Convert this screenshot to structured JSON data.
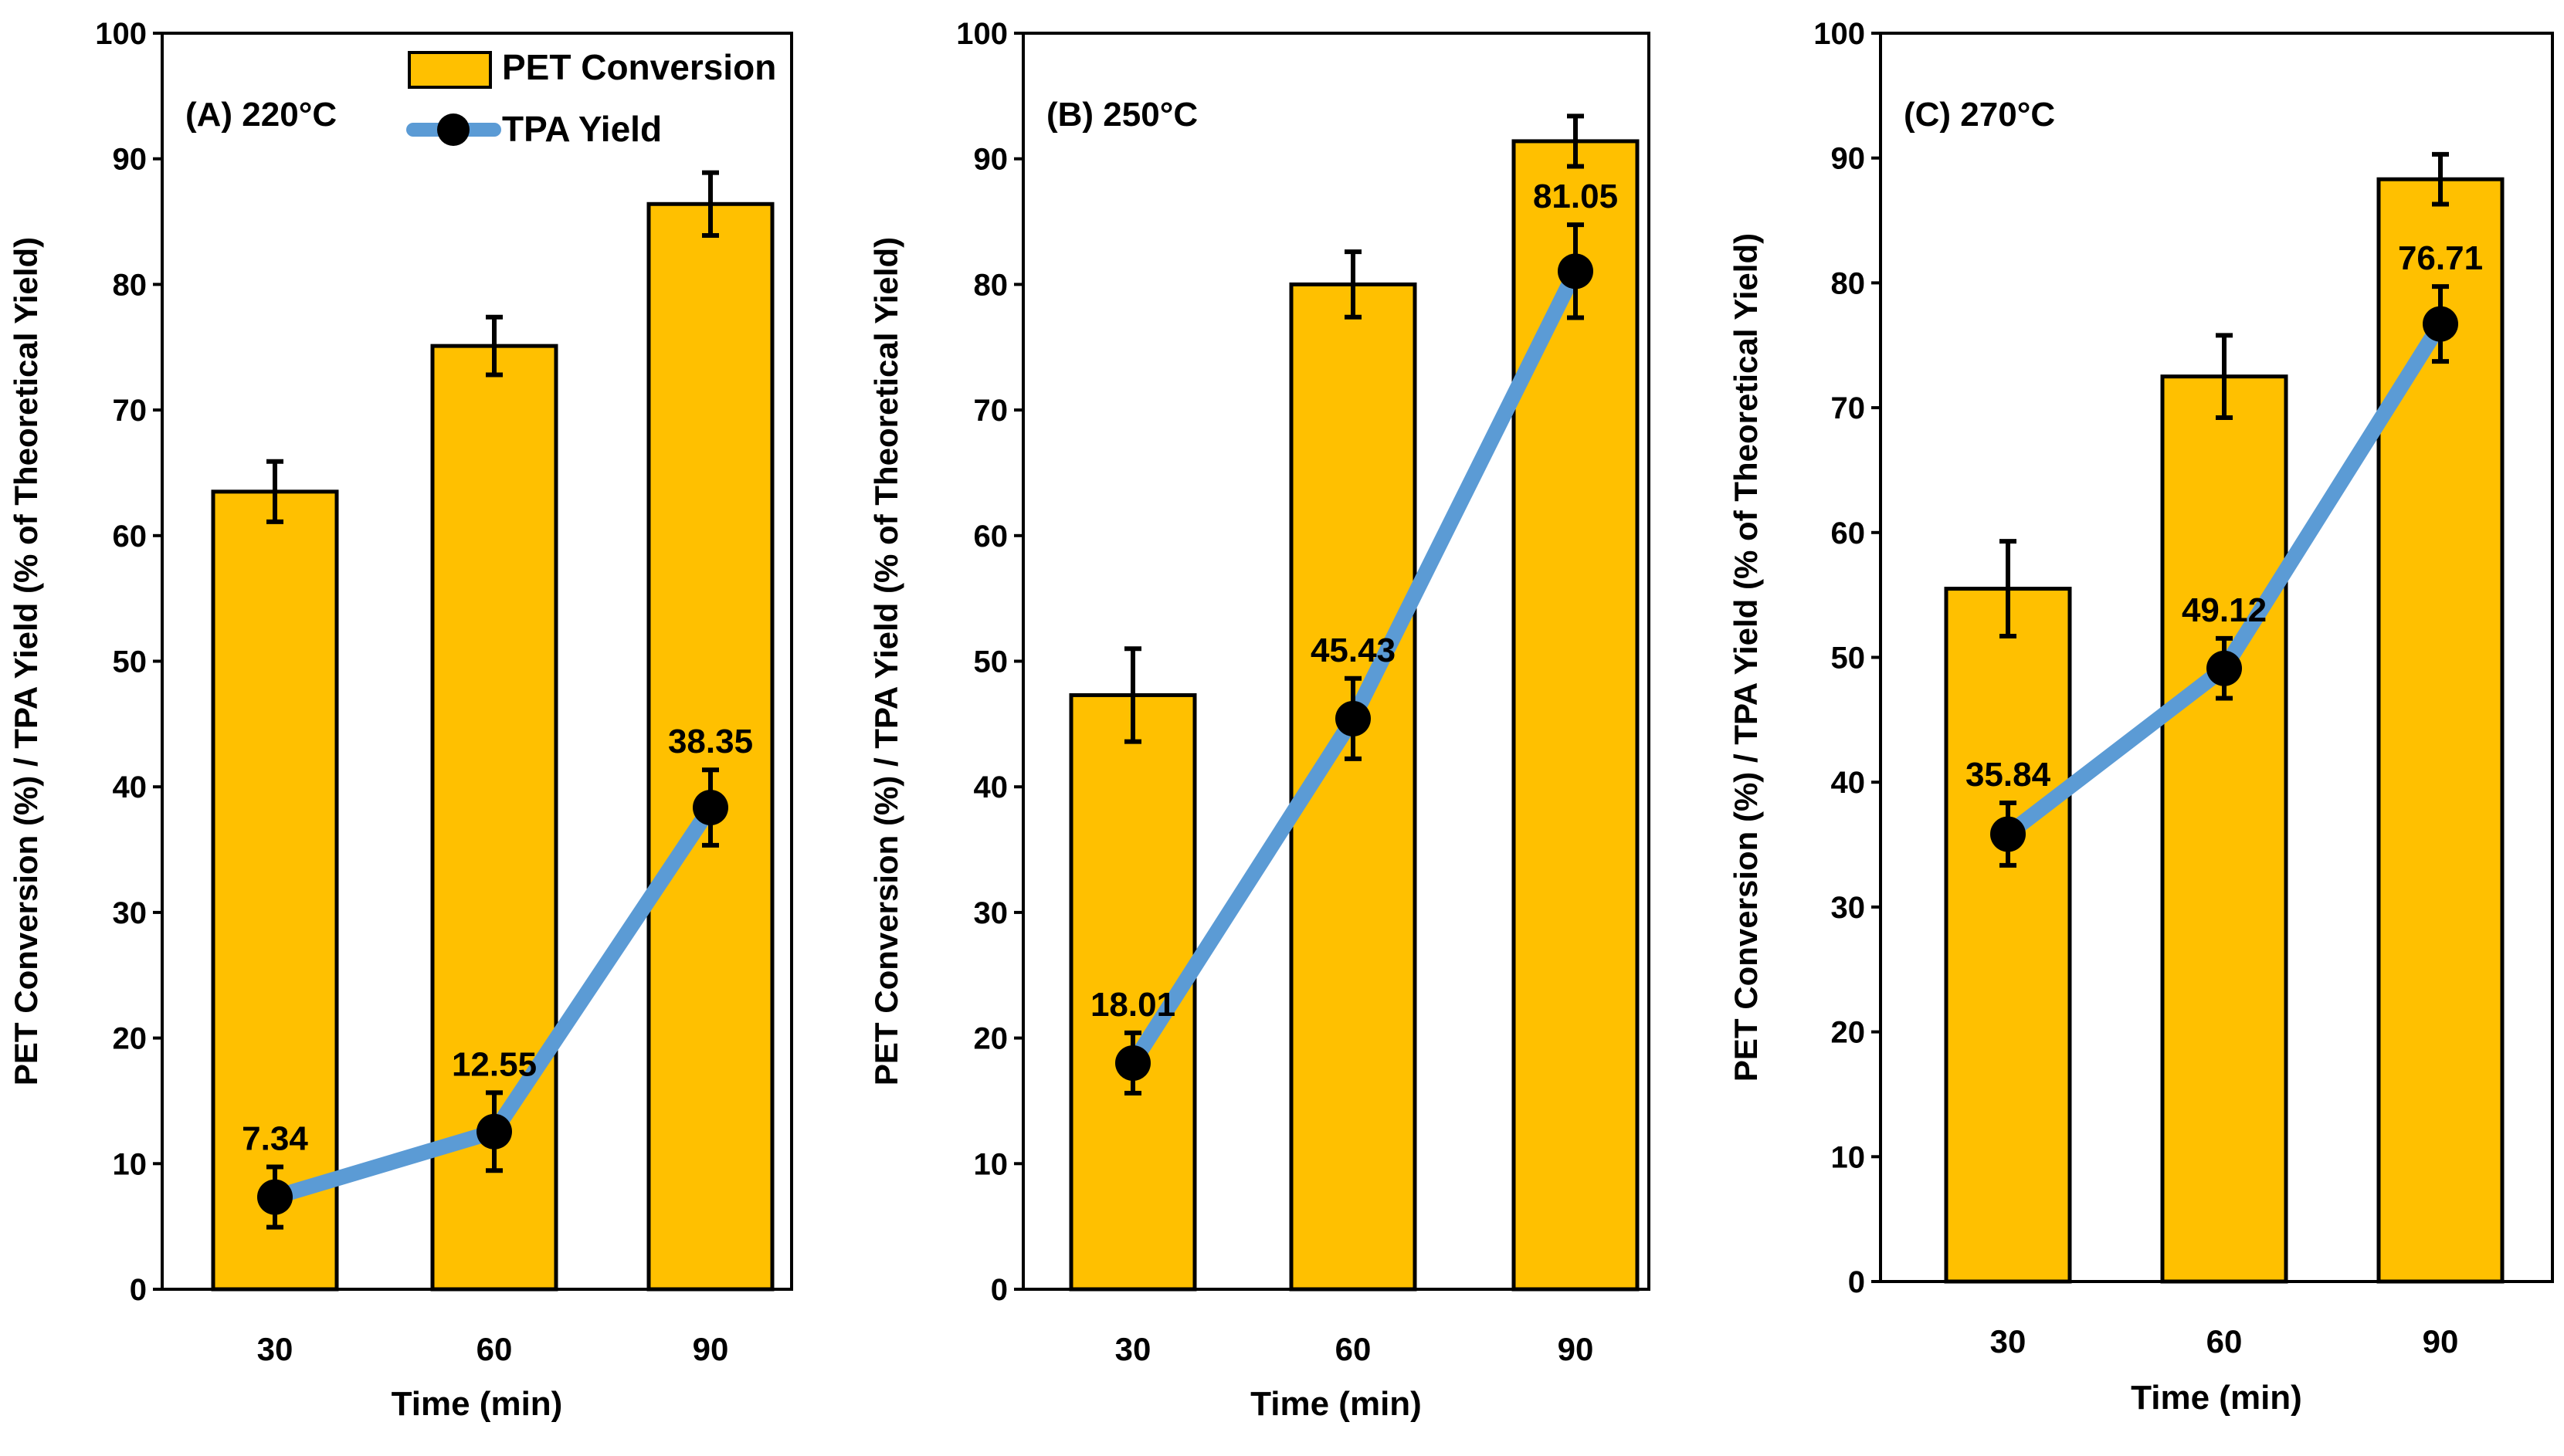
{
  "figure": {
    "legend": {
      "bar_label": "PET Conversion",
      "line_label": "TPA Yield",
      "placement": "top-right of panel A"
    }
  },
  "colors": {
    "bar": "#FFC000",
    "line": "#5B9BD5",
    "marker": "#000000",
    "axis": "#000000"
  },
  "chart_data": [
    {
      "type": "bar+line",
      "title": "(A) 220°C",
      "xlabel": "Time (min)",
      "ylabel": "PET Conversion (%) / TPA Yield (% of Theoretical Yield)",
      "categories": [
        "30",
        "60",
        "90"
      ],
      "ylim": [
        0,
        100
      ],
      "yticks": [
        "0",
        "10",
        "20",
        "30",
        "40",
        "50",
        "60",
        "70",
        "80",
        "90",
        "100"
      ],
      "series": [
        {
          "name": "PET Conversion",
          "kind": "bar",
          "values": [
            63.5,
            75.1,
            86.4
          ],
          "errors": [
            2.4,
            2.3,
            2.5
          ]
        },
        {
          "name": "TPA Yield",
          "kind": "line",
          "values": [
            7.34,
            12.55,
            38.35
          ],
          "errors": [
            2.4,
            3.1,
            3.0
          ],
          "labels": [
            "7.34",
            "12.55",
            "38.35"
          ]
        }
      ]
    },
    {
      "type": "bar+line",
      "title": "(B) 250°C",
      "xlabel": "Time (min)",
      "ylabel": "PET Conversion (%) / TPA Yield (% of Theoretical Yield)",
      "categories": [
        "30",
        "60",
        "90"
      ],
      "ylim": [
        0,
        100
      ],
      "yticks": [
        "0",
        "10",
        "20",
        "30",
        "40",
        "50",
        "60",
        "70",
        "80",
        "90",
        "100"
      ],
      "series": [
        {
          "name": "PET Conversion",
          "kind": "bar",
          "values": [
            47.3,
            80.0,
            91.4
          ],
          "errors": [
            3.7,
            2.6,
            2.0
          ]
        },
        {
          "name": "TPA Yield",
          "kind": "line",
          "values": [
            18.01,
            45.43,
            81.05
          ],
          "errors": [
            2.4,
            3.2,
            3.7
          ],
          "labels": [
            "18.01",
            "45.43",
            "81.05"
          ]
        }
      ]
    },
    {
      "type": "bar+line",
      "title": "(C) 270°C",
      "xlabel": "Time (min)",
      "ylabel": "PET Conversion (%) / TPA Yield (% of Theoretical Yield)",
      "categories": [
        "30",
        "60",
        "90"
      ],
      "ylim": [
        0,
        100
      ],
      "yticks": [
        "0",
        "10",
        "20",
        "30",
        "40",
        "50",
        "60",
        "70",
        "80",
        "90",
        "100"
      ],
      "series": [
        {
          "name": "PET Conversion",
          "kind": "bar",
          "values": [
            55.5,
            72.5,
            88.3
          ],
          "errors": [
            3.8,
            3.3,
            2.0
          ]
        },
        {
          "name": "TPA Yield",
          "kind": "line",
          "values": [
            35.84,
            49.12,
            76.71
          ],
          "errors": [
            2.5,
            2.4,
            3.0
          ],
          "labels": [
            "35.84",
            "49.12",
            "76.71"
          ]
        }
      ]
    }
  ]
}
